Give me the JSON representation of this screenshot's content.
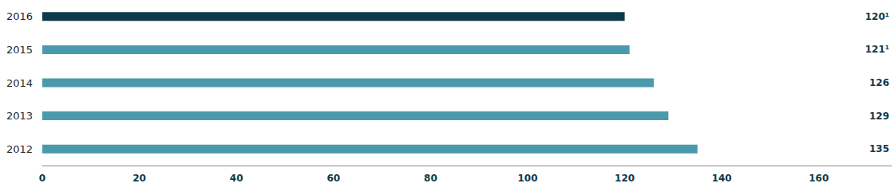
{
  "chart_data": {
    "type": "bar",
    "orientation": "horizontal",
    "categories": [
      "2012",
      "2013",
      "2014",
      "2015",
      "2016"
    ],
    "values": [
      135,
      129,
      126,
      121,
      120
    ],
    "value_labels": [
      "135",
      "129",
      "126",
      "121¹",
      "120¹"
    ],
    "colors": [
      "#4a9aab",
      "#4a9aab",
      "#4a9aab",
      "#4a9aab",
      "#0b3a4b"
    ],
    "xlim": [
      0,
      175
    ],
    "xticks": [
      0,
      20,
      40,
      60,
      80,
      100,
      120,
      140,
      160
    ],
    "grid": false,
    "data_labels": true
  }
}
